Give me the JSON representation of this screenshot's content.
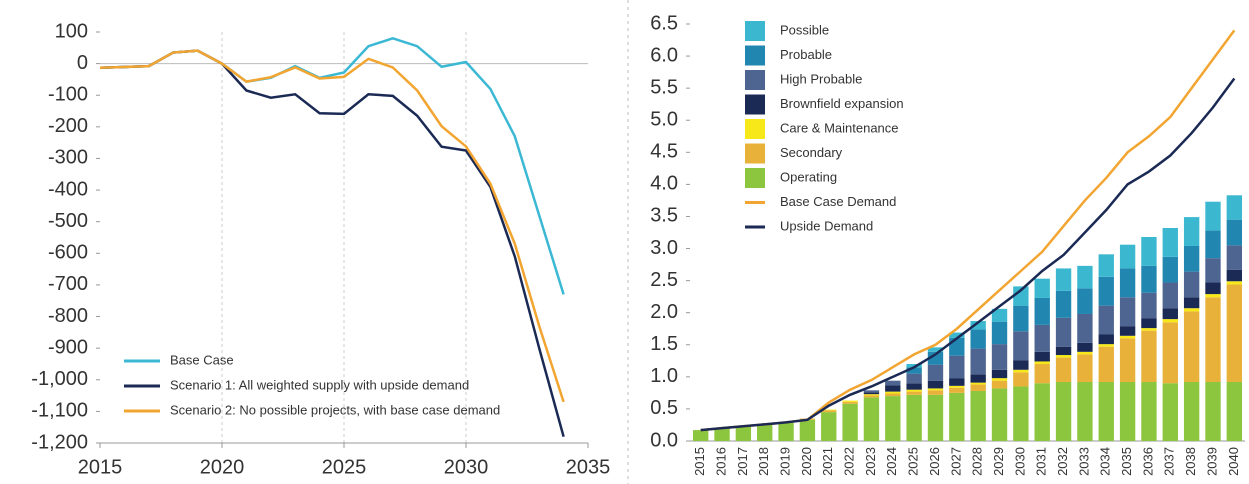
{
  "chart_data": [
    {
      "type": "line",
      "x": [
        2015,
        2017,
        2018,
        2019,
        2020,
        2021,
        2022,
        2023,
        2024,
        2025,
        2026,
        2027,
        2028,
        2029,
        2030,
        2031,
        2032,
        2033,
        2034
      ],
      "series": [
        {
          "name": "Base Case",
          "color": "#3bb8d4",
          "values": [
            -13,
            -8,
            35,
            41,
            0,
            -57,
            -45,
            -8,
            -45,
            -28,
            55,
            80,
            55,
            -10,
            5,
            -80,
            -230,
            -480,
            -730
          ]
        },
        {
          "name": "Scenario 1: All weighted supply with upside demand",
          "color": "#1b2a55",
          "values": [
            -13,
            -8,
            35,
            41,
            0,
            -85,
            -108,
            -97,
            -157,
            -159,
            -97,
            -102,
            -165,
            -263,
            -275,
            -390,
            -610,
            -900,
            -1180
          ]
        },
        {
          "name": "Scenario 2: No possible projects, with base case demand",
          "color": "#f2a531",
          "values": [
            -13,
            -8,
            35,
            41,
            0,
            -57,
            -43,
            -12,
            -47,
            -42,
            15,
            -12,
            -85,
            -198,
            -262,
            -380,
            -570,
            -830,
            -1070
          ]
        }
      ],
      "xlim": [
        2015,
        2035
      ],
      "xticks": [
        2015,
        2020,
        2025,
        2030,
        2035
      ],
      "ylim": [
        -1200,
        100
      ],
      "yticks": [
        100,
        0,
        -100,
        -200,
        -300,
        -400,
        -500,
        -600,
        -700,
        -800,
        -900,
        {
          "value": -1000,
          "label": "-1,000"
        },
        {
          "value": -1100,
          "label": "-1,100"
        },
        {
          "value": -1200,
          "label": "-1,200"
        }
      ],
      "grid": true,
      "legend": "lower left"
    },
    {
      "type": "bar",
      "stacked": true,
      "categories": [
        "2015",
        "2016",
        "2017",
        "2018",
        "2019",
        "2020",
        "2021",
        "2022",
        "2023",
        "2024",
        "2025",
        "2026",
        "2027",
        "2028",
        "2029",
        "2030",
        "2031",
        "2032",
        "2033",
        "2034",
        "2035",
        "2036",
        "2037",
        "2038",
        "2039",
        "2040"
      ],
      "series": [
        {
          "name": "Operating",
          "color": "#8cc63f",
          "values": [
            0.17,
            0.2,
            0.22,
            0.25,
            0.28,
            0.33,
            0.45,
            0.58,
            0.68,
            0.7,
            0.72,
            0.72,
            0.75,
            0.78,
            0.82,
            0.85,
            0.9,
            0.92,
            0.92,
            0.92,
            0.92,
            0.92,
            0.9,
            0.92,
            0.92,
            0.92
          ]
        },
        {
          "name": "Secondary",
          "color": "#e8b23a",
          "values": [
            0,
            0,
            0,
            0,
            0,
            0.02,
            0.03,
            0.03,
            0.03,
            0.04,
            0.05,
            0.07,
            0.08,
            0.1,
            0.12,
            0.22,
            0.3,
            0.38,
            0.43,
            0.55,
            0.68,
            0.8,
            0.95,
            1.1,
            1.32,
            1.52
          ]
        },
        {
          "name": "Care & Maintenance",
          "color": "#f7e81a",
          "values": [
            0,
            0,
            0,
            0,
            0,
            0,
            0.01,
            0.02,
            0.02,
            0.03,
            0.03,
            0.03,
            0.03,
            0.03,
            0.04,
            0.04,
            0.04,
            0.04,
            0.04,
            0.04,
            0.04,
            0.04,
            0.05,
            0.05,
            0.05,
            0.05
          ]
        },
        {
          "name": "Brownfield expansion",
          "color": "#1b2a55",
          "values": [
            0,
            0,
            0,
            0,
            0,
            0,
            0,
            0,
            0.03,
            0.1,
            0.1,
            0.12,
            0.12,
            0.13,
            0.13,
            0.15,
            0.15,
            0.13,
            0.14,
            0.15,
            0.15,
            0.15,
            0.17,
            0.17,
            0.18,
            0.18
          ]
        },
        {
          "name": "High Probable",
          "color": "#4e6591",
          "values": [
            0,
            0,
            0,
            0,
            0,
            0,
            0,
            0,
            0.03,
            0.07,
            0.15,
            0.25,
            0.35,
            0.4,
            0.4,
            0.45,
            0.42,
            0.45,
            0.45,
            0.45,
            0.45,
            0.4,
            0.4,
            0.4,
            0.38,
            0.38
          ]
        },
        {
          "name": "Probable",
          "color": "#2287b0",
          "values": [
            0,
            0,
            0,
            0,
            0,
            0,
            0,
            0,
            0,
            0,
            0.1,
            0.2,
            0.28,
            0.3,
            0.35,
            0.4,
            0.42,
            0.42,
            0.4,
            0.45,
            0.45,
            0.42,
            0.4,
            0.4,
            0.43,
            0.4
          ]
        },
        {
          "name": "Possible",
          "color": "#3bb8d0",
          "values": [
            0,
            0,
            0,
            0,
            0,
            0,
            0,
            0,
            0,
            0,
            0.05,
            0.07,
            0.08,
            0.13,
            0.2,
            0.3,
            0.3,
            0.35,
            0.35,
            0.35,
            0.37,
            0.45,
            0.45,
            0.45,
            0.45,
            0.38
          ]
        },
        {
          "name": "Base Case Demand",
          "type": "line",
          "color": "#f2a531",
          "values": [
            0.17,
            0.2,
            0.23,
            0.26,
            0.29,
            0.33,
            0.6,
            0.8,
            0.95,
            1.15,
            1.35,
            1.5,
            1.75,
            2.05,
            2.35,
            2.65,
            2.95,
            3.35,
            3.75,
            4.1,
            4.5,
            4.75,
            5.05,
            5.5,
            5.95,
            6.4
          ]
        },
        {
          "name": "Upside Demand",
          "type": "line",
          "color": "#1b2a55",
          "values": [
            0.17,
            0.2,
            0.23,
            0.26,
            0.29,
            0.33,
            0.55,
            0.72,
            0.85,
            1.0,
            1.15,
            1.35,
            1.6,
            1.85,
            2.1,
            2.35,
            2.65,
            2.9,
            3.25,
            3.6,
            4.0,
            4.2,
            4.45,
            4.8,
            5.2,
            5.65
          ]
        }
      ],
      "ylim": [
        0,
        6.5
      ],
      "yticks": [
        {
          "value": 0,
          "label": "0.0"
        },
        0.5,
        {
          "value": 1,
          "label": "1.0"
        },
        1.5,
        {
          "value": 2,
          "label": "2.0"
        },
        2.5,
        {
          "value": 3,
          "label": "3.0"
        },
        3.5,
        {
          "value": 4,
          "label": "4.0"
        },
        4.5,
        {
          "value": 5,
          "label": "5.0"
        },
        5.5,
        {
          "value": 6,
          "label": "6.0"
        },
        6.5
      ],
      "legend": "upper left"
    }
  ]
}
